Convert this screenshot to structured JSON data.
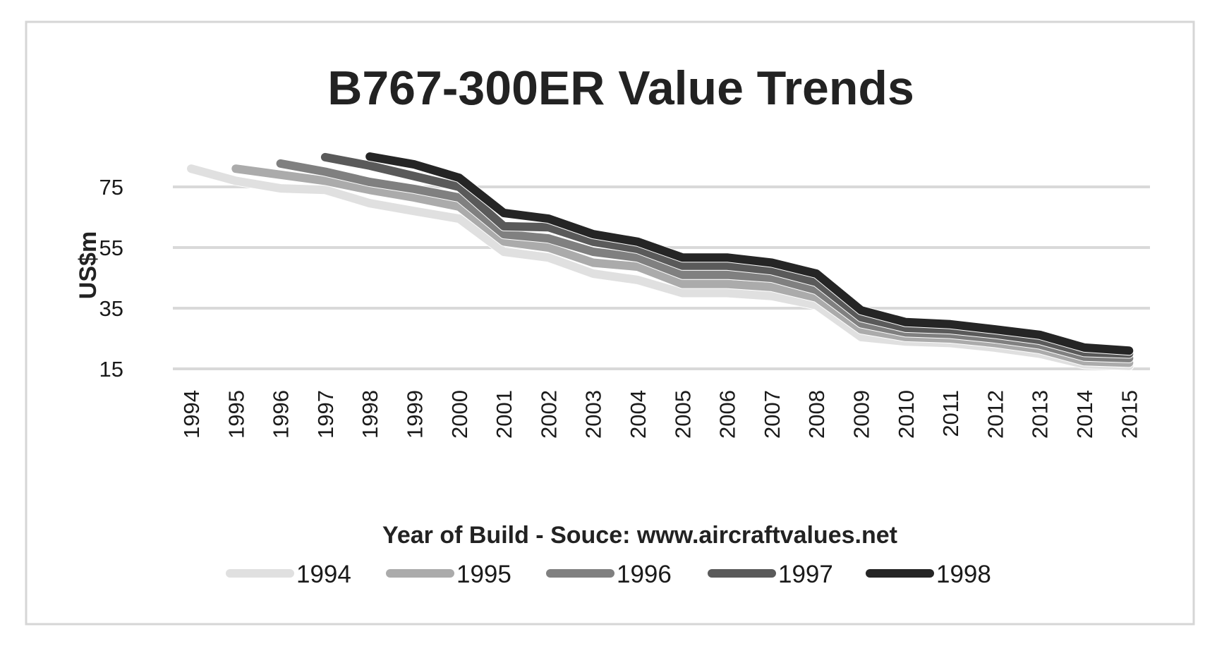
{
  "chart_data": {
    "type": "line",
    "title": "B767-300ER Value Trends",
    "xlabel": "Year of Build - Souce: www.aircraftvalues.net",
    "ylabel": "US$m",
    "x": [
      "1994",
      "1995",
      "1996",
      "1997",
      "1998",
      "1999",
      "2000",
      "2001",
      "2002",
      "2003",
      "2004",
      "2005",
      "2006",
      "2007",
      "2008",
      "2009",
      "2010",
      "2011",
      "2012",
      "2013",
      "2014",
      "2015"
    ],
    "yticks": [
      15,
      35,
      55,
      75
    ],
    "ylim": [
      15,
      90
    ],
    "grid": true,
    "legend": "bottom",
    "series": [
      {
        "name": "1994",
        "color": "#e0e0e0",
        "values": [
          81,
          77,
          74.5,
          74,
          69.6,
          67,
          64.5,
          53.6,
          51.7,
          46.4,
          44.3,
          40,
          40,
          39,
          36,
          25.5,
          24,
          23.5,
          22,
          20,
          16.5,
          16
        ]
      },
      {
        "name": "1995",
        "color": "#ababab",
        "values": [
          null,
          81,
          79,
          77,
          74,
          71.5,
          68.5,
          57,
          55,
          50,
          48.7,
          43,
          43,
          42,
          38.5,
          28,
          25.5,
          25,
          23.5,
          21.5,
          17.5,
          17
        ]
      },
      {
        "name": "1996",
        "color": "#808080",
        "values": [
          null,
          null,
          82.7,
          80,
          76.6,
          74.3,
          71.5,
          59.4,
          58,
          53.6,
          51.7,
          46,
          46,
          45,
          41,
          30,
          27,
          26.5,
          25,
          23,
          19,
          18.5
        ]
      },
      {
        "name": "1997",
        "color": "#5a5a5a",
        "values": [
          null,
          null,
          null,
          84.8,
          82,
          78.5,
          75,
          62,
          61.7,
          56.9,
          54.5,
          49,
          49,
          47.5,
          43.6,
          32,
          28.5,
          28,
          26.5,
          24.5,
          20.5,
          20
        ]
      },
      {
        "name": "1998",
        "color": "#252525",
        "values": [
          null,
          null,
          null,
          null,
          85,
          82.4,
          78,
          66.4,
          64.5,
          59.4,
          56.9,
          51.7,
          51.7,
          50,
          46.4,
          34.3,
          30.4,
          29.7,
          28,
          26.2,
          22,
          21
        ]
      }
    ]
  }
}
